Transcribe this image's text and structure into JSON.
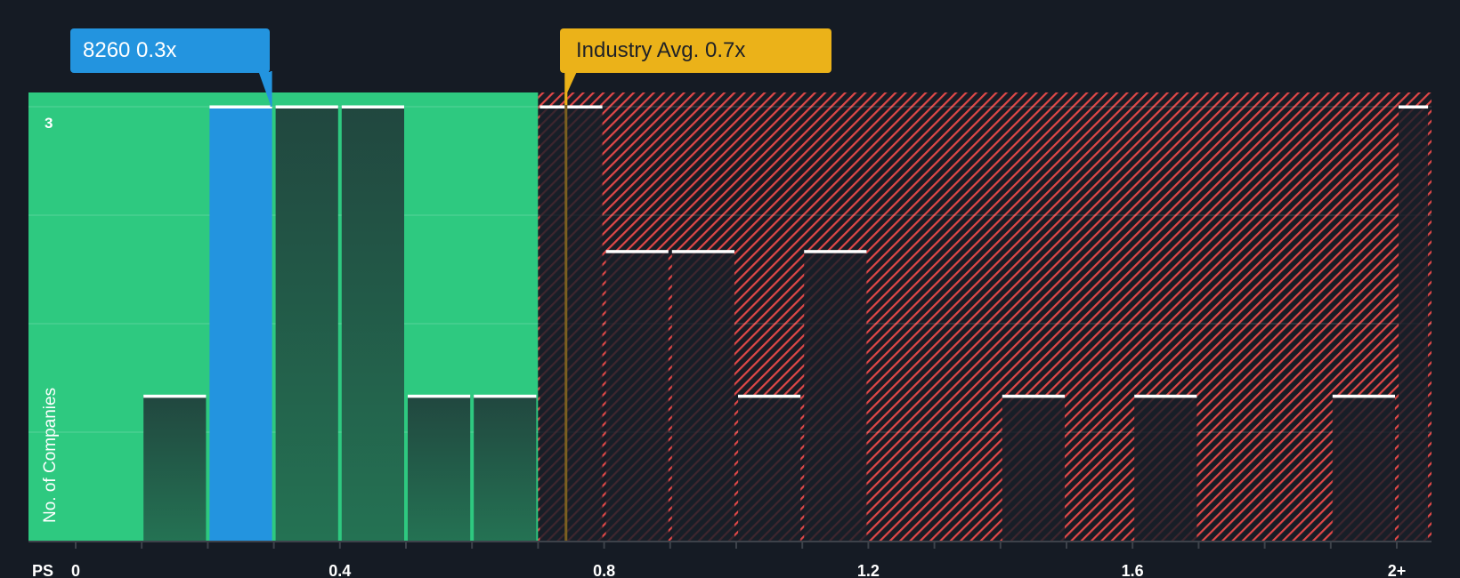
{
  "chart_data": {
    "type": "bar",
    "title": "",
    "xlabel": "PS",
    "ylabel": "No. of Companies",
    "x_ticks": [
      "0",
      "0.4",
      "0.8",
      "1.2",
      "1.6",
      "2+"
    ],
    "x_tick_values": [
      0,
      0.4,
      0.8,
      1.2,
      1.6,
      2.0
    ],
    "y_ticks": [
      "3"
    ],
    "ylim": [
      0,
      3
    ],
    "xlim": [
      -0.07,
      2.06
    ],
    "bin_width": 0.1,
    "bins": [
      {
        "start": 0.1,
        "end": 0.2,
        "count": 1
      },
      {
        "start": 0.2,
        "end": 0.3,
        "count": 3,
        "highlight": true
      },
      {
        "start": 0.3,
        "end": 0.4,
        "count": 3
      },
      {
        "start": 0.4,
        "end": 0.5,
        "count": 3
      },
      {
        "start": 0.5,
        "end": 0.6,
        "count": 1
      },
      {
        "start": 0.6,
        "end": 0.7,
        "count": 1
      },
      {
        "start": 0.7,
        "end": 0.8,
        "count": 3
      },
      {
        "start": 0.8,
        "end": 0.9,
        "count": 2
      },
      {
        "start": 0.9,
        "end": 1.0,
        "count": 2
      },
      {
        "start": 1.0,
        "end": 1.1,
        "count": 1
      },
      {
        "start": 1.1,
        "end": 1.2,
        "count": 2
      },
      {
        "start": 1.4,
        "end": 1.5,
        "count": 1
      },
      {
        "start": 1.6,
        "end": 1.7,
        "count": 1
      },
      {
        "start": 1.9,
        "end": 2.0,
        "count": 1
      },
      {
        "start": 2.0,
        "end": 2.05,
        "count": 3,
        "label": "2+"
      }
    ],
    "categories": [
      "0.1-0.2",
      "0.2-0.3",
      "0.3-0.4",
      "0.4-0.5",
      "0.5-0.6",
      "0.6-0.7",
      "0.7-0.8",
      "0.8-0.9",
      "0.9-1.0",
      "1.0-1.1",
      "1.1-1.2",
      "1.4-1.5",
      "1.6-1.7",
      "1.9-2.0",
      "2+"
    ],
    "values": [
      1,
      3,
      3,
      3,
      1,
      1,
      3,
      2,
      2,
      1,
      2,
      1,
      1,
      1,
      3
    ],
    "annotations": [
      {
        "label": "8260 0.3x",
        "value": 0.3,
        "color": "#2394df"
      },
      {
        "label": "Industry Avg. 0.7x",
        "value": 0.745,
        "color": "#ebb219"
      }
    ],
    "regions": [
      {
        "name": "undervalued",
        "from": -0.07,
        "to": 0.7,
        "color": "#2ec980"
      },
      {
        "name": "overvalued",
        "from": 0.7,
        "to": 2.06,
        "color": "#e04848",
        "pattern": "hatch"
      }
    ],
    "grid": true,
    "legend": null
  },
  "company_label": "8260 0.3x",
  "industry_label": "Industry Avg. 0.7x",
  "colors": {
    "background": "#151b24",
    "green_region": "#2ec980",
    "green_bar_top": "#21473f",
    "green_bar_bottom": "#247253",
    "highlight_bar": "#2394df",
    "hatch": "#e04848",
    "avg_line": "#7a6020",
    "axis": "#3d424a"
  }
}
